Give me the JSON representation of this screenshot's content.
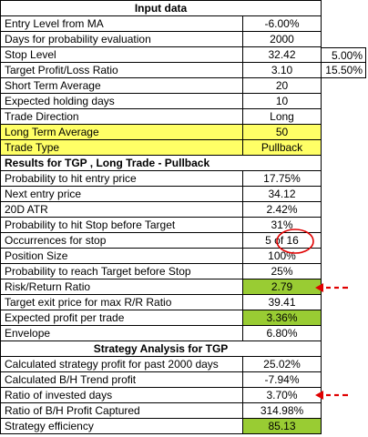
{
  "header_input": "Input data",
  "input_rows": [
    {
      "label": "Entry Level from MA",
      "value": "-6.00%"
    },
    {
      "label": "Days for probability evaluation",
      "value": "2000"
    },
    {
      "label": "Stop Level",
      "value": "32.42",
      "extra": "5.00%"
    },
    {
      "label": "Target Profit/Loss Ratio",
      "value": "3.10",
      "extra": "15.50%"
    },
    {
      "label": "Short Term Average",
      "value": "20"
    },
    {
      "label": "Expected holding days",
      "value": "10"
    },
    {
      "label": "Trade Direction",
      "value": "Long"
    },
    {
      "label": "Long Term Average",
      "value": "50"
    },
    {
      "label": "Trade Type",
      "value": "Pullback"
    }
  ],
  "header_results": "Results for TGP , Long Trade - Pullback",
  "result_rows": [
    {
      "label": "Probability to hit entry price",
      "value": "17.75%"
    },
    {
      "label": "Next entry price",
      "value": "34.12"
    },
    {
      "label": "20D ATR",
      "value": "2.42%"
    },
    {
      "label": "Probability to hit Stop before Target",
      "value": "31%"
    },
    {
      "label": "Occurrences for stop",
      "value": "5 of 16"
    },
    {
      "label": "Position Size",
      "value": "100%"
    },
    {
      "label": "Probability to reach Target before Stop",
      "value": "25%"
    },
    {
      "label": "Risk/Return Ratio",
      "value": "2.79"
    },
    {
      "label": "Target exit price for max R/R Ratio",
      "value": "39.41"
    },
    {
      "label": "Expected profit per trade",
      "value": "3.36%"
    },
    {
      "label": "Envelope",
      "value": "6.80%"
    }
  ],
  "header_strategy": "Strategy Analysis for TGP",
  "strategy_rows": [
    {
      "label": "Calculated strategy profit for past 2000 days",
      "value": "25.02%"
    },
    {
      "label": "Calculated B/H Trend profit",
      "value": "-7.94%"
    },
    {
      "label": "Ratio of invested days",
      "value": "3.70%"
    },
    {
      "label": "Ratio of B/H Profit Captured",
      "value": "314.98%"
    },
    {
      "label": "Strategy efficiency",
      "value": "85.13"
    }
  ],
  "colors": {
    "yellow": "#ffff66",
    "green": "#99cc33",
    "annotation_red": "#e00000"
  }
}
